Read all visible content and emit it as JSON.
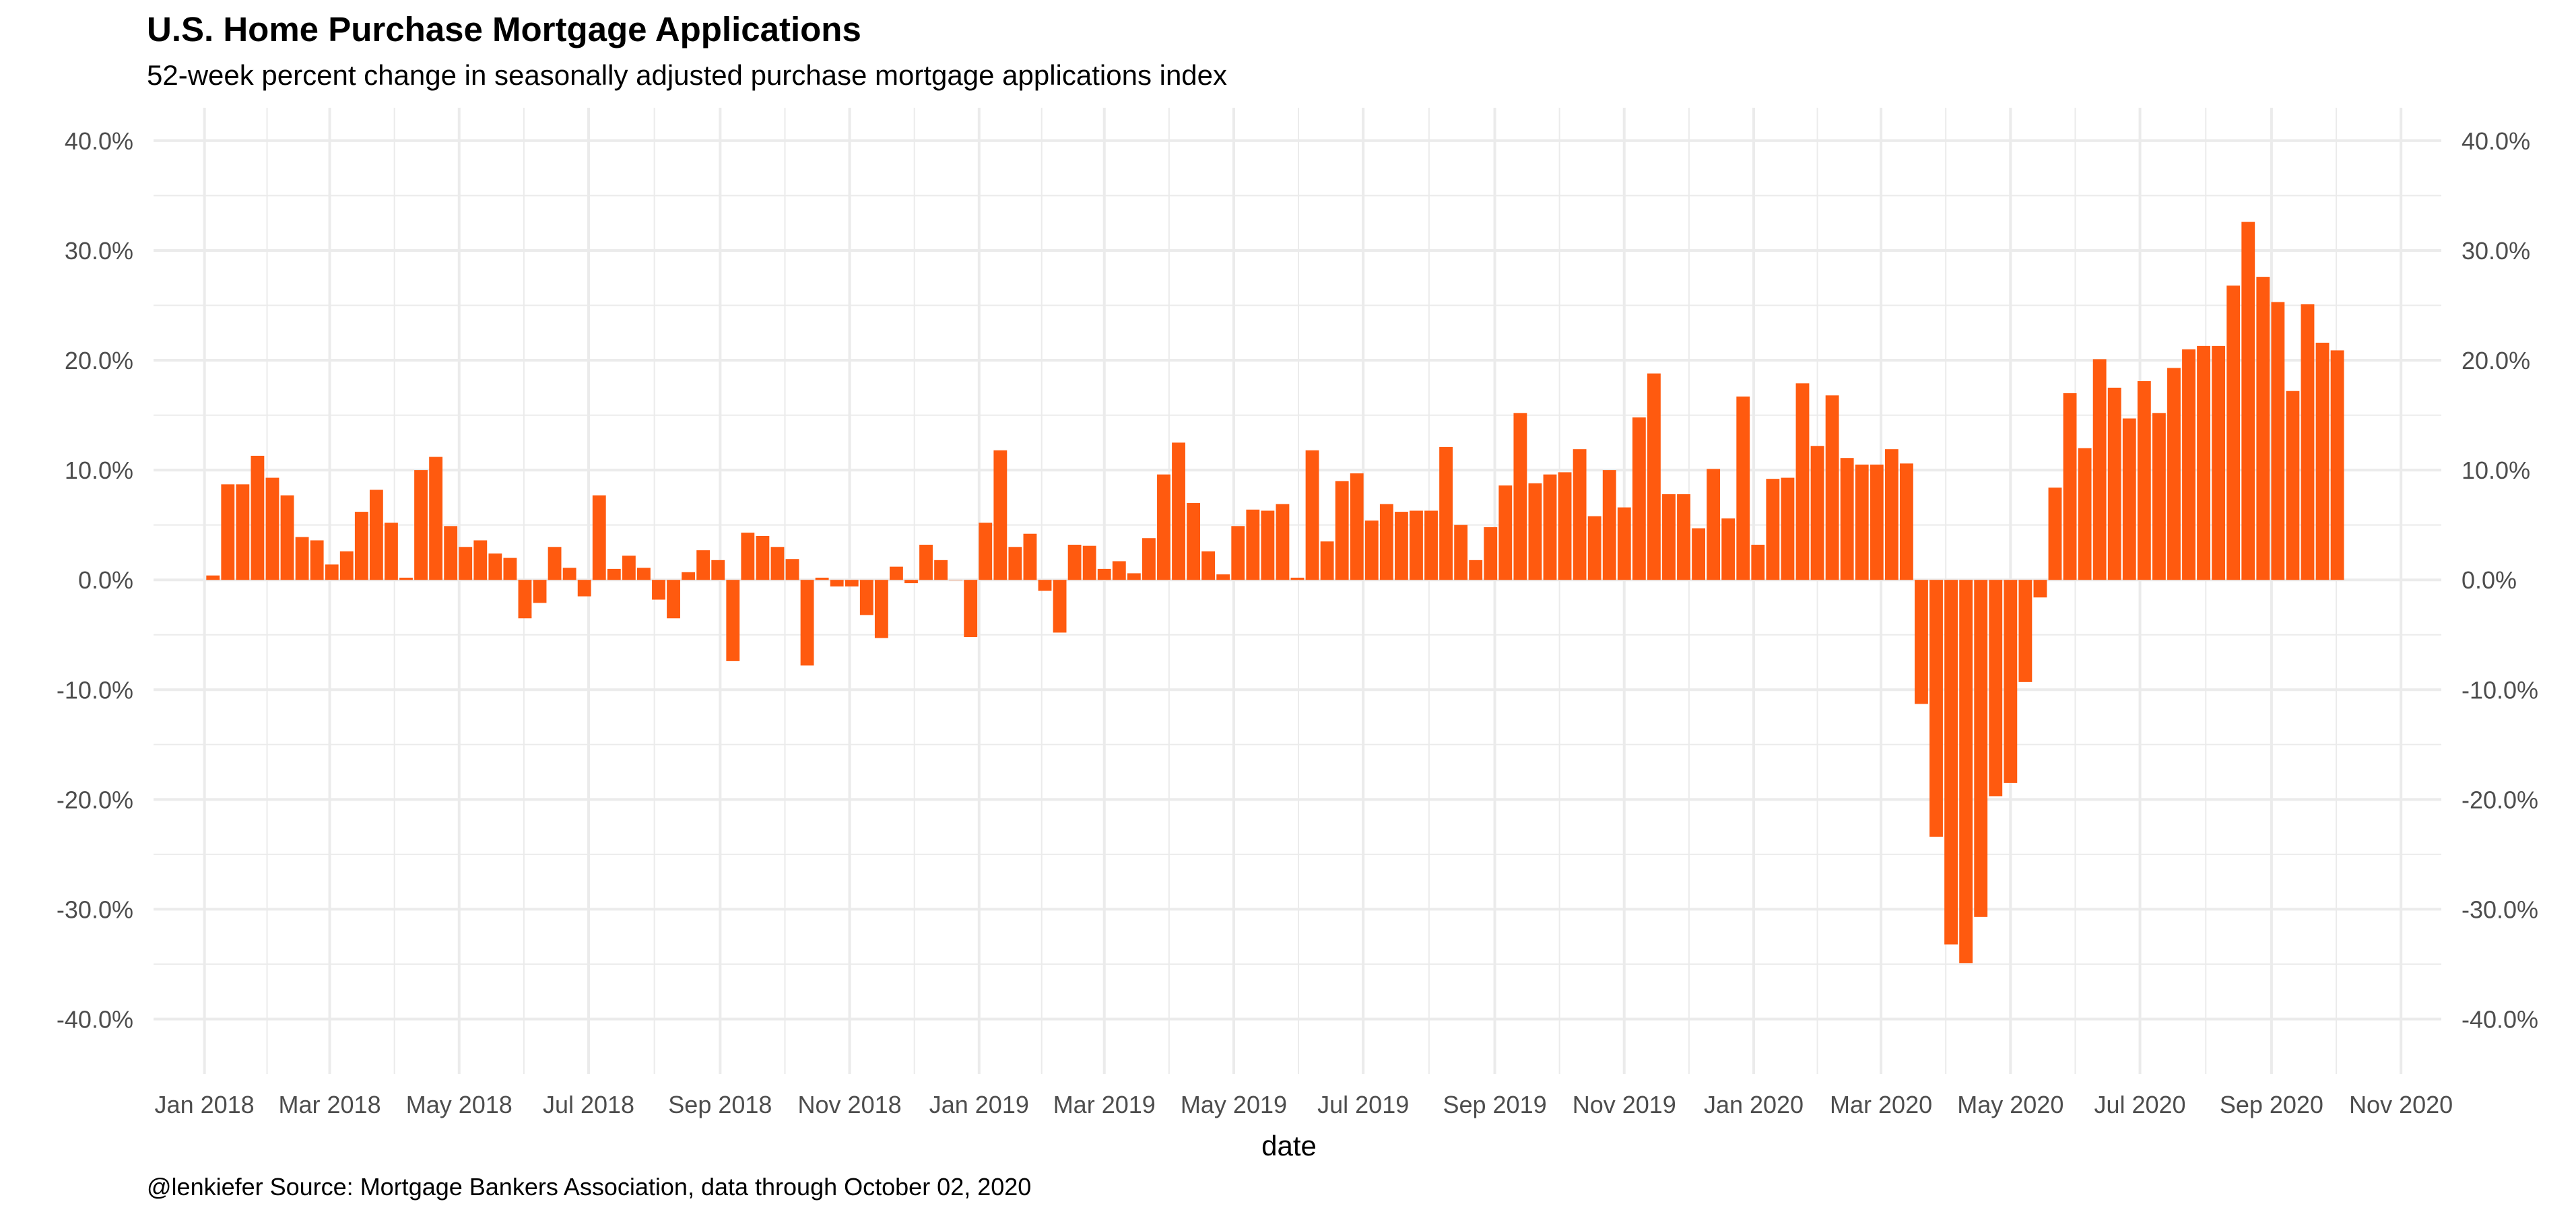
{
  "title": "U.S. Home Purchase Mortgage Applications",
  "subtitle": "52-week percent change in seasonally adjusted purchase mortgage applications index",
  "caption": "@lenkiefer Source: Mortgage Bankers Association, data through October 02, 2020",
  "colors": {
    "bar": "#FF5A0F",
    "grid": "#EBEBEB",
    "tick_text": "#4D4D4D",
    "text": "#000000"
  },
  "chart_data": {
    "type": "bar",
    "xlabel": "date",
    "ylabel": "",
    "ylim": [
      -0.45,
      0.43
    ],
    "xlim": [
      "2017-12-08",
      "2020-11-20"
    ],
    "yticks": [
      -0.4,
      -0.3,
      -0.2,
      -0.1,
      0.0,
      0.1,
      0.2,
      0.3,
      0.4
    ],
    "ytick_labels": [
      "-40.0%",
      "-30.0%",
      "-20.0%",
      "-10.0%",
      "0.0%",
      "10.0%",
      "20.0%",
      "30.0%",
      "40.0%"
    ],
    "xticks": [
      "2018-01-01",
      "2018-03-01",
      "2018-05-01",
      "2018-07-01",
      "2018-09-01",
      "2018-11-01",
      "2019-01-01",
      "2019-03-01",
      "2019-05-01",
      "2019-07-01",
      "2019-09-01",
      "2019-11-01",
      "2020-01-01",
      "2020-03-01",
      "2020-05-01",
      "2020-07-01",
      "2020-09-01",
      "2020-11-01"
    ],
    "xtick_labels": [
      "Jan 2018",
      "Mar 2018",
      "May 2018",
      "Jul 2018",
      "Sep 2018",
      "Nov 2018",
      "Jan 2019",
      "Mar 2019",
      "May 2019",
      "Jul 2019",
      "Sep 2019",
      "Nov 2019",
      "Jan 2020",
      "Mar 2020",
      "May 2020",
      "Jul 2020",
      "Sep 2020",
      "Nov 2020"
    ],
    "grid": true,
    "secondary_y_axis": true,
    "first_date": "2018-01-05",
    "last_date": "2020-10-02",
    "frequency": "weekly",
    "values": [
      0.004,
      0.087,
      0.087,
      0.113,
      0.093,
      0.077,
      0.039,
      0.036,
      0.014,
      0.026,
      0.062,
      0.082,
      0.052,
      0.002,
      0.1,
      0.112,
      0.049,
      0.03,
      0.036,
      0.024,
      0.02,
      -0.035,
      -0.021,
      0.03,
      0.011,
      -0.015,
      0.077,
      0.01,
      0.022,
      0.011,
      -0.018,
      -0.035,
      0.007,
      0.027,
      0.018,
      -0.074,
      0.043,
      0.04,
      0.03,
      0.019,
      -0.078,
      0.002,
      -0.006,
      -0.006,
      -0.032,
      -0.053,
      0.012,
      -0.003,
      0.032,
      0.018,
      0.0,
      -0.052,
      0.052,
      0.118,
      0.03,
      0.042,
      -0.01,
      -0.048,
      0.032,
      0.031,
      0.01,
      0.017,
      0.006,
      0.038,
      0.096,
      0.125,
      0.07,
      0.026,
      0.005,
      0.049,
      0.064,
      0.063,
      0.069,
      0.002,
      0.118,
      0.035,
      0.09,
      0.097,
      0.054,
      0.069,
      0.062,
      0.063,
      0.063,
      0.121,
      0.05,
      0.018,
      0.048,
      0.086,
      0.152,
      0.088,
      0.096,
      0.098,
      0.119,
      0.058,
      0.1,
      0.066,
      0.148,
      0.188,
      0.078,
      0.078,
      0.047,
      0.101,
      0.056,
      0.167,
      0.032,
      0.092,
      0.093,
      0.179,
      0.122,
      0.168,
      0.111,
      0.105,
      0.105,
      0.119,
      0.106,
      -0.113,
      -0.234,
      -0.332,
      -0.349,
      -0.307,
      -0.197,
      -0.185,
      -0.093,
      -0.016,
      0.084,
      0.17,
      0.12,
      0.201,
      0.175,
      0.147,
      0.181,
      0.152,
      0.193,
      0.21,
      0.213,
      0.213,
      0.268,
      0.326,
      0.276,
      0.253,
      0.172,
      0.251,
      0.216,
      0.209
    ]
  }
}
